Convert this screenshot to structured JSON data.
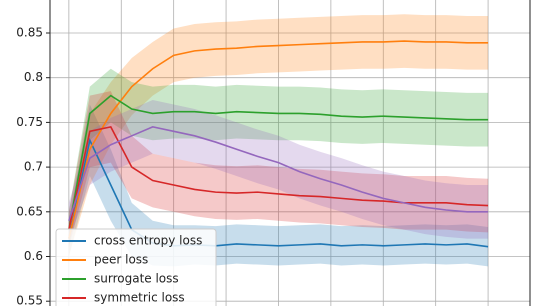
{
  "chart_data": {
    "type": "line",
    "x": [
      0,
      2,
      4,
      6,
      8,
      10,
      12,
      14,
      16,
      18,
      20,
      22,
      24,
      26,
      28,
      30,
      32,
      34,
      36,
      38,
      40
    ],
    "series": [
      {
        "name": "cross entropy loss",
        "color": "#1f77b4",
        "values": [
          0.62,
          0.73,
          0.68,
          0.63,
          0.615,
          0.612,
          0.613,
          0.612,
          0.614,
          0.613,
          0.612,
          0.613,
          0.614,
          0.612,
          0.613,
          0.612,
          0.613,
          0.614,
          0.613,
          0.614,
          0.611
        ],
        "band": [
          0.02,
          0.04,
          0.04,
          0.03,
          0.025,
          0.023,
          0.022,
          0.022,
          0.022,
          0.022,
          0.022,
          0.022,
          0.022,
          0.022,
          0.022,
          0.022,
          0.022,
          0.022,
          0.022,
          0.022,
          0.022
        ]
      },
      {
        "name": "peer loss",
        "color": "#ff7f0e",
        "values": [
          0.62,
          0.72,
          0.76,
          0.79,
          0.81,
          0.825,
          0.83,
          0.832,
          0.833,
          0.835,
          0.836,
          0.837,
          0.838,
          0.839,
          0.84,
          0.84,
          0.841,
          0.84,
          0.84,
          0.839,
          0.839
        ],
        "band": [
          0.02,
          0.04,
          0.035,
          0.032,
          0.03,
          0.03,
          0.03,
          0.03,
          0.03,
          0.03,
          0.03,
          0.03,
          0.03,
          0.03,
          0.03,
          0.03,
          0.03,
          0.03,
          0.03,
          0.03,
          0.03
        ]
      },
      {
        "name": "surrogate loss",
        "color": "#2ca02c",
        "values": [
          0.63,
          0.76,
          0.78,
          0.765,
          0.76,
          0.762,
          0.762,
          0.76,
          0.762,
          0.761,
          0.76,
          0.76,
          0.759,
          0.757,
          0.756,
          0.757,
          0.756,
          0.755,
          0.754,
          0.753,
          0.753
        ],
        "band": [
          0.02,
          0.03,
          0.03,
          0.03,
          0.03,
          0.03,
          0.03,
          0.03,
          0.03,
          0.03,
          0.03,
          0.03,
          0.03,
          0.03,
          0.03,
          0.03,
          0.03,
          0.03,
          0.03,
          0.03,
          0.03
        ]
      },
      {
        "name": "symmetric loss",
        "color": "#d62728",
        "values": [
          0.63,
          0.74,
          0.745,
          0.7,
          0.685,
          0.68,
          0.675,
          0.672,
          0.671,
          0.672,
          0.67,
          0.668,
          0.667,
          0.665,
          0.663,
          0.662,
          0.66,
          0.66,
          0.66,
          0.658,
          0.657
        ],
        "band": [
          0.02,
          0.04,
          0.04,
          0.035,
          0.03,
          0.03,
          0.03,
          0.03,
          0.03,
          0.03,
          0.03,
          0.03,
          0.03,
          0.03,
          0.03,
          0.03,
          0.03,
          0.03,
          0.03,
          0.03,
          0.03
        ]
      },
      {
        "color": "#9467bd",
        "values": [
          0.64,
          0.71,
          0.725,
          0.735,
          0.745,
          0.74,
          0.735,
          0.728,
          0.72,
          0.712,
          0.705,
          0.695,
          0.687,
          0.68,
          0.672,
          0.665,
          0.66,
          0.655,
          0.652,
          0.65,
          0.65
        ],
        "band": [
          0.02,
          0.03,
          0.03,
          0.03,
          0.03,
          0.03,
          0.03,
          0.03,
          0.03,
          0.03,
          0.03,
          0.03,
          0.03,
          0.03,
          0.03,
          0.03,
          0.03,
          0.03,
          0.03,
          0.03,
          0.03
        ]
      }
    ],
    "xlim": [
      -1.8,
      44
    ],
    "xticks": [
      0,
      5,
      10,
      15,
      20,
      25,
      30,
      35,
      40
    ],
    "ylim": [
      0.54,
      0.89
    ],
    "yticks": [
      0.55,
      0.6,
      0.65,
      0.7,
      0.75,
      0.8,
      0.85
    ],
    "grid": true,
    "legend": "lower left"
  }
}
